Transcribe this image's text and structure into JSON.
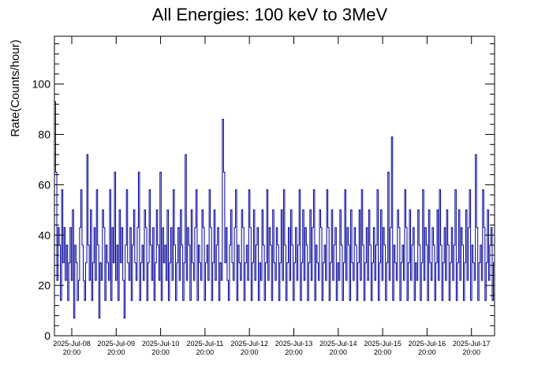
{
  "chart_data": {
    "type": "line",
    "title": "All Energies:  100 keV to 3MeV",
    "ylabel": "Rate(Counts/hour)",
    "xlabel": "",
    "ylim": [
      0,
      119
    ],
    "yticks": [
      0,
      20,
      40,
      60,
      80,
      100
    ],
    "x_tick_labels": [
      {
        "date": "2025-Jul-08",
        "time": "20:00"
      },
      {
        "date": "2025-Jul-09",
        "time": "20:00"
      },
      {
        "date": "2025-Jul-10",
        "time": "20:00"
      },
      {
        "date": "2025-Jul-11",
        "time": "20:00"
      },
      {
        "date": "2025-Jul-12",
        "time": "20:00"
      },
      {
        "date": "2025-Jul-13",
        "time": "20:00"
      },
      {
        "date": "2025-Jul-14",
        "time": "20:00"
      },
      {
        "date": "2025-Jul-15",
        "time": "20:00"
      },
      {
        "date": "2025-Jul-16",
        "time": "20:00"
      },
      {
        "date": "2025-Jul-17",
        "time": "20:00"
      }
    ],
    "series_color": "#000099",
    "grid": false,
    "series": [
      {
        "values": [
          93,
          65,
          22,
          43,
          36,
          14,
          58,
          29,
          43,
          22,
          36,
          14,
          29,
          43,
          22,
          50,
          7,
          36,
          29,
          14,
          22,
          43,
          58,
          36,
          22,
          14,
          29,
          72,
          36,
          22,
          50,
          14,
          29,
          43,
          22,
          58,
          36,
          7,
          29,
          22,
          50,
          43,
          14,
          36,
          29,
          22,
          58,
          14,
          43,
          29,
          65,
          22,
          36,
          14,
          50,
          29,
          43,
          22,
          7,
          36,
          58,
          29,
          22,
          43,
          14,
          36,
          50,
          29,
          22,
          43,
          65,
          14,
          29,
          36,
          22,
          50,
          43,
          14,
          29,
          58,
          36,
          22,
          43,
          14,
          29,
          50,
          36,
          22,
          65,
          14,
          43,
          29,
          36,
          22,
          50,
          14,
          29,
          43,
          22,
          58,
          36,
          14,
          29,
          43,
          22,
          50,
          36,
          14,
          29,
          72,
          22,
          43,
          36,
          14,
          50,
          29,
          22,
          43,
          58,
          14,
          36,
          29,
          22,
          50,
          43,
          14,
          29,
          36,
          22,
          58,
          43,
          14,
          29,
          50,
          22,
          36,
          43,
          14,
          29,
          22,
          86,
          65,
          29,
          43,
          22,
          14,
          36,
          50,
          29,
          22,
          43,
          58,
          14,
          36,
          29,
          22,
          50,
          43,
          14,
          29,
          36,
          22,
          58,
          43,
          14,
          29,
          50,
          22,
          36,
          43,
          14,
          29,
          22,
          50,
          36,
          14,
          29,
          58,
          22,
          43,
          36,
          14,
          50,
          29,
          22,
          43,
          36,
          14,
          29,
          50,
          22,
          58,
          36,
          14,
          29,
          43,
          22,
          50,
          36,
          14,
          29,
          43,
          22,
          36,
          58,
          14,
          29,
          50,
          22,
          43,
          36,
          14,
          29,
          50,
          22,
          43,
          58,
          14,
          36,
          29,
          22,
          50,
          43,
          14,
          29,
          36,
          22,
          58,
          43,
          14,
          29,
          50,
          22,
          36,
          43,
          14,
          29,
          22,
          50,
          36,
          14,
          29,
          58,
          22,
          43,
          36,
          14,
          50,
          29,
          22,
          43,
          36,
          14,
          29,
          50,
          22,
          58,
          36,
          14,
          29,
          43,
          22,
          50,
          36,
          14,
          29,
          43,
          22,
          36,
          58,
          14,
          29,
          50,
          22,
          43,
          36,
          14,
          29,
          65,
          22,
          43,
          79,
          14,
          36,
          29,
          22,
          50,
          43,
          14,
          29,
          36,
          22,
          58,
          43,
          14,
          29,
          50,
          22,
          36,
          43,
          14,
          29,
          22,
          50,
          36,
          14,
          29,
          58,
          22,
          43,
          36,
          14,
          50,
          29,
          22,
          43,
          36,
          14,
          29,
          50,
          22,
          58,
          36,
          14,
          29,
          43,
          22,
          50,
          36,
          14,
          29,
          43,
          22,
          36,
          58,
          14,
          29,
          50,
          22,
          43,
          36,
          14,
          29,
          50,
          22,
          43,
          58,
          14,
          36,
          29,
          22,
          72,
          43,
          14,
          29,
          36,
          22,
          58,
          43,
          14,
          29,
          50,
          22,
          36,
          43,
          14,
          29
        ]
      }
    ]
  }
}
